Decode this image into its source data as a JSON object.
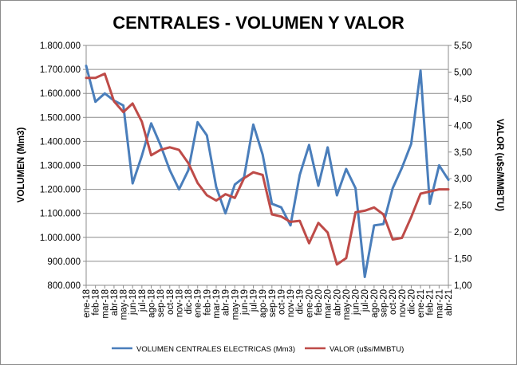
{
  "chart_data": {
    "type": "line",
    "title": "CENTRALES - VOLUMEN Y VALOR",
    "ylabel": "VOLUMEN (Mm3)",
    "y2label": "VALOR (u$s/MMBTU)",
    "ylim": [
      800000,
      1800000
    ],
    "y2lim": [
      1.0,
      5.5
    ],
    "yticks": [
      "800.000",
      "900.000",
      "1.000.000",
      "1.100.000",
      "1.200.000",
      "1.300.000",
      "1.400.000",
      "1.500.000",
      "1.600.000",
      "1.700.000",
      "1.800.000"
    ],
    "y2ticks": [
      "1,00",
      "1,50",
      "2,00",
      "2,50",
      "3,00",
      "3,50",
      "4,00",
      "4,50",
      "5,00",
      "5,50"
    ],
    "categories": [
      "ene-18",
      "feb-18",
      "mar-18",
      "abr-18",
      "may-18",
      "jun-18",
      "jul-18",
      "ago-18",
      "sep-18",
      "oct-18",
      "nov-18",
      "dic-18",
      "ene-19",
      "feb-19",
      "mar-19",
      "abr-19",
      "may-19",
      "jun-19",
      "jul-19",
      "ago-19",
      "sep-19",
      "oct-19",
      "nov-19",
      "dic-19",
      "ene-20",
      "feb-20",
      "mar-20",
      "abr-20",
      "may-20",
      "jun-20",
      "jul-20",
      "ago-20",
      "sep-20",
      "oct-20",
      "nov-20",
      "dic-20",
      "ene-21",
      "feb-21",
      "mar-21",
      "abr-21"
    ],
    "grid": "horizontal",
    "legend_position": "bottom",
    "series": [
      {
        "name": "VOLUMEN CENTRALES ELECTRICAS (Mm3)",
        "axis": "left",
        "color": "#4a7ebb",
        "values": [
          1715000,
          1565000,
          1600000,
          1570000,
          1550000,
          1225000,
          1340000,
          1475000,
          1385000,
          1280000,
          1200000,
          1280000,
          1480000,
          1425000,
          1210000,
          1100000,
          1220000,
          1250000,
          1470000,
          1345000,
          1140000,
          1125000,
          1050000,
          1260000,
          1385000,
          1215000,
          1375000,
          1175000,
          1285000,
          1205000,
          835000,
          1050000,
          1055000,
          1205000,
          1290000,
          1390000,
          1695000,
          1140000,
          1300000,
          1240000
        ]
      },
      {
        "name": "VALOR (u$s/MMBTU)",
        "axis": "right",
        "color": "#be4b48",
        "values": [
          4.89,
          4.89,
          4.97,
          4.45,
          4.25,
          4.41,
          4.07,
          3.44,
          3.54,
          3.59,
          3.54,
          3.29,
          2.92,
          2.69,
          2.59,
          2.71,
          2.64,
          3.01,
          3.12,
          3.07,
          2.33,
          2.29,
          2.19,
          2.21,
          1.79,
          2.17,
          1.99,
          1.39,
          1.51,
          2.37,
          2.4,
          2.46,
          2.33,
          1.86,
          1.89,
          2.28,
          2.72,
          2.76,
          2.8,
          2.8
        ]
      }
    ]
  }
}
